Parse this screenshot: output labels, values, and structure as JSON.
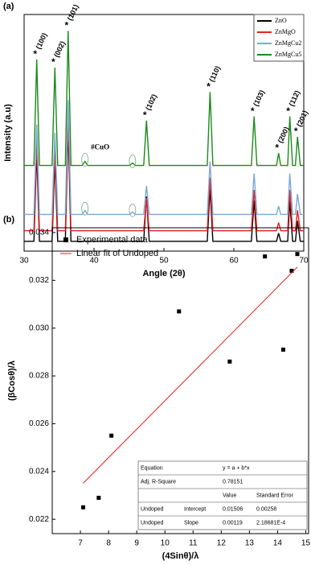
{
  "chart_data": [
    {
      "type": "line",
      "panel": "(a)",
      "xlabel": "Angle (2θ)",
      "ylabel": "Intensity (a.u)",
      "x": [
        30,
        31.4,
        31.8,
        32.2,
        34.0,
        34.4,
        34.8,
        35.9,
        36.3,
        36.7,
        38.3,
        38.7,
        39.1,
        45.1,
        45.5,
        45.9,
        47.1,
        47.5,
        47.9,
        56.2,
        56.6,
        57.0,
        62.5,
        62.9,
        63.3,
        66.1,
        66.4,
        66.7,
        67.7,
        68.0,
        68.4,
        68.8,
        69.1,
        69.5,
        70
      ],
      "xlim": [
        30,
        70
      ],
      "xticks": [
        30,
        40,
        50,
        60,
        70
      ],
      "ylim": [
        0,
        290
      ],
      "series": [
        {
          "name": "ZnO",
          "color": "#000000",
          "values": [
            12,
            12,
            122,
            12,
            12,
            112,
            12,
            12,
            152,
            12,
            12,
            12,
            12,
            12,
            12,
            12,
            12,
            67,
            12,
            12,
            77,
            12,
            12,
            62,
            12,
            12,
            22,
            12,
            12,
            62,
            12,
            12,
            37,
            12,
            12
          ]
        },
        {
          "name": "ZnMgO",
          "color": "#e8201e",
          "values": [
            25,
            25,
            135,
            25,
            25,
            125,
            25,
            25,
            165,
            25,
            25,
            25,
            25,
            25,
            25,
            25,
            25,
            65,
            25,
            25,
            90,
            25,
            25,
            75,
            25,
            25,
            35,
            25,
            25,
            75,
            25,
            25,
            50,
            25,
            25
          ]
        },
        {
          "name": "ZnMgCu2",
          "color": "#7aa8d8",
          "values": [
            45,
            45,
            155,
            45,
            45,
            145,
            45,
            45,
            185,
            45,
            45,
            50,
            45,
            45,
            48,
            45,
            45,
            80,
            45,
            45,
            110,
            45,
            45,
            95,
            45,
            45,
            55,
            45,
            45,
            95,
            45,
            45,
            70,
            45,
            45
          ]
        },
        {
          "name": "ZnMgCu5",
          "color": "#1a8a1a",
          "values": [
            105,
            105,
            235,
            105,
            105,
            225,
            105,
            105,
            270,
            105,
            105,
            110,
            105,
            105,
            108,
            105,
            105,
            160,
            105,
            105,
            195,
            105,
            105,
            165,
            105,
            105,
            120,
            105,
            105,
            165,
            105,
            105,
            140,
            105,
            105
          ]
        }
      ],
      "peak_marker": "*",
      "cuo_label": "#CuO",
      "peak_labels": [
        {
          "x": 31.8,
          "label": "(100)"
        },
        {
          "x": 34.4,
          "label": "(002)"
        },
        {
          "x": 36.3,
          "label": "(101)"
        },
        {
          "x": 47.5,
          "label": "(102)"
        },
        {
          "x": 56.6,
          "label": "(110)"
        },
        {
          "x": 62.9,
          "label": "(103)"
        },
        {
          "x": 66.4,
          "label": "(200)"
        },
        {
          "x": 68.0,
          "label": "(112)"
        },
        {
          "x": 69.1,
          "label": "(201)"
        }
      ]
    },
    {
      "type": "scatter",
      "panel": "(b)",
      "xlabel": "(4Sinθ)/λ",
      "ylabel": "(βCosθ)/λ",
      "xlim": [
        6,
        15.1
      ],
      "xticks": [
        7,
        8,
        9,
        10,
        11,
        12,
        13,
        14,
        15
      ],
      "ylim": [
        0.0214,
        0.0342
      ],
      "yticks": [
        0.022,
        0.024,
        0.026,
        0.028,
        {
          "value": 0.03,
          "label": "0.030"
        },
        0.032,
        0.034
      ],
      "series": [
        {
          "name": "Experimental data",
          "color": "#000000",
          "x": [
            7.1,
            7.65,
            8.1,
            10.5,
            12.3,
            13.55,
            14.2,
            14.5,
            14.7
          ],
          "values": [
            0.0225,
            0.0229,
            0.0255,
            0.0307,
            0.0286,
            0.033,
            0.0291,
            0.0324,
            0.0331
          ]
        }
      ],
      "fit": {
        "name": "Linear fit of Undoped",
        "color": "#e8201e"
      },
      "table": {
        "equation_label": "Equation",
        "equation": "y = a + b*x",
        "r2_label": "Adj. R-Square",
        "r2": 0.78151,
        "columns": [
          "Value",
          "Standard Error"
        ],
        "rows": [
          {
            "name": "Undoped",
            "param": "Intercept",
            "value": 0.01506,
            "error": 0.00258
          },
          {
            "name": "Undoped",
            "param": "Slope",
            "value": 0.00119,
            "error": {
              "value": 0.000218681,
              "label": "2.18681E-4"
            }
          }
        ]
      }
    }
  ]
}
